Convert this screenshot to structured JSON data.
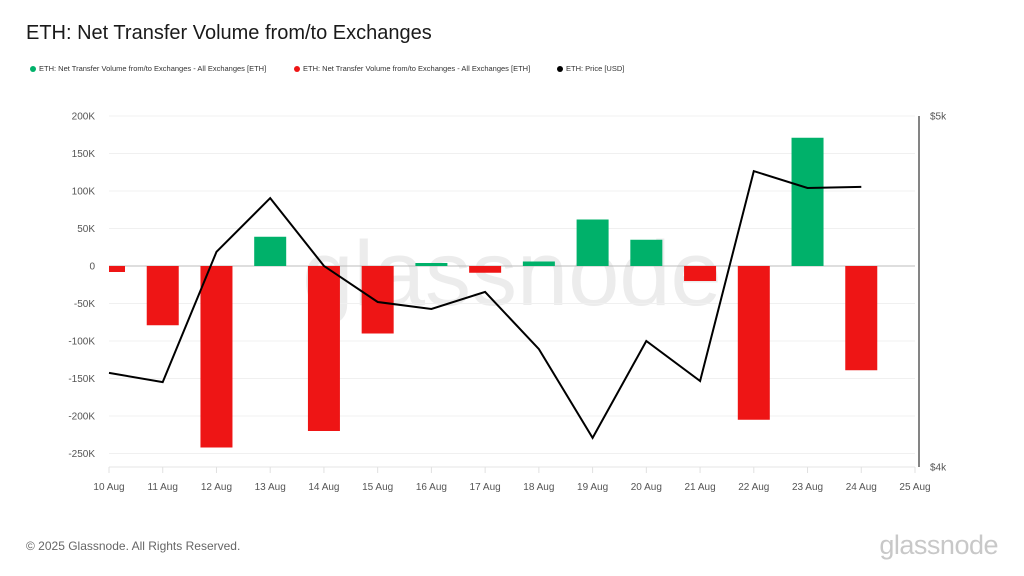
{
  "title": "ETH: Net Transfer Volume from/to Exchanges",
  "legend": [
    {
      "label": "ETH: Net Transfer Volume from/to Exchanges - All Exchanges [ETH]",
      "color": "#00b16a"
    },
    {
      "label": "ETH: Net Transfer Volume from/to Exchanges - All Exchanges [ETH]",
      "color": "#ee1515"
    },
    {
      "label": "ETH: Price [USD]",
      "color": "#000000"
    }
  ],
  "watermark": "glassnode",
  "footer": {
    "copyright": "© 2025 Glassnode. All Rights Reserved.",
    "brand": "glassnode"
  },
  "colors": {
    "positive": "#00b16a",
    "negative": "#ee1515",
    "price": "#000000",
    "grid": "#f0f0f0",
    "zero": "#bdbdbd"
  },
  "chart_data": {
    "type": "bar",
    "title": "ETH: Net Transfer Volume from/to Exchanges",
    "xlabel": "",
    "ylabel": "",
    "categories": [
      "10 Aug",
      "11 Aug",
      "12 Aug",
      "13 Aug",
      "14 Aug",
      "15 Aug",
      "16 Aug",
      "17 Aug",
      "18 Aug",
      "19 Aug",
      "20 Aug",
      "21 Aug",
      "22 Aug",
      "23 Aug",
      "24 Aug"
    ],
    "x_ticks": [
      "10 Aug",
      "11 Aug",
      "12 Aug",
      "13 Aug",
      "14 Aug",
      "15 Aug",
      "16 Aug",
      "17 Aug",
      "18 Aug",
      "19 Aug",
      "20 Aug",
      "21 Aug",
      "22 Aug",
      "23 Aug",
      "24 Aug",
      "25 Aug"
    ],
    "series": [
      {
        "name": "ETH: Net Transfer Volume from/to Exchanges - All Exchanges [ETH]",
        "axis": "left",
        "type": "bar",
        "values": [
          -8000,
          -79000,
          -242000,
          39000,
          -220000,
          -90000,
          4000,
          -9000,
          6000,
          62000,
          35000,
          -20000,
          -205000,
          171000,
          -139000
        ]
      },
      {
        "name": "ETH: Price [USD]",
        "axis": "right",
        "type": "line",
        "values": [
          4268,
          4242,
          4613,
          4766,
          4573,
          4470,
          4450,
          4499,
          4336,
          4083,
          4359,
          4245,
          4843,
          4795,
          4798
        ]
      }
    ],
    "y_left": {
      "ticks": [
        "200K",
        "150K",
        "100K",
        "50K",
        "0",
        "-50K",
        "-100K",
        "-150K",
        "-200K",
        "-250K"
      ],
      "values": [
        200000,
        150000,
        100000,
        50000,
        0,
        -50000,
        -100000,
        -150000,
        -200000,
        -250000
      ],
      "ylim": [
        -268000,
        200000
      ]
    },
    "y_right": {
      "ticks": [
        "$5k",
        "$4k"
      ],
      "values": [
        5000,
        4000
      ],
      "ylim": [
        4000,
        5000
      ],
      "scale": "log"
    },
    "grid": true,
    "legend_position": "top"
  }
}
